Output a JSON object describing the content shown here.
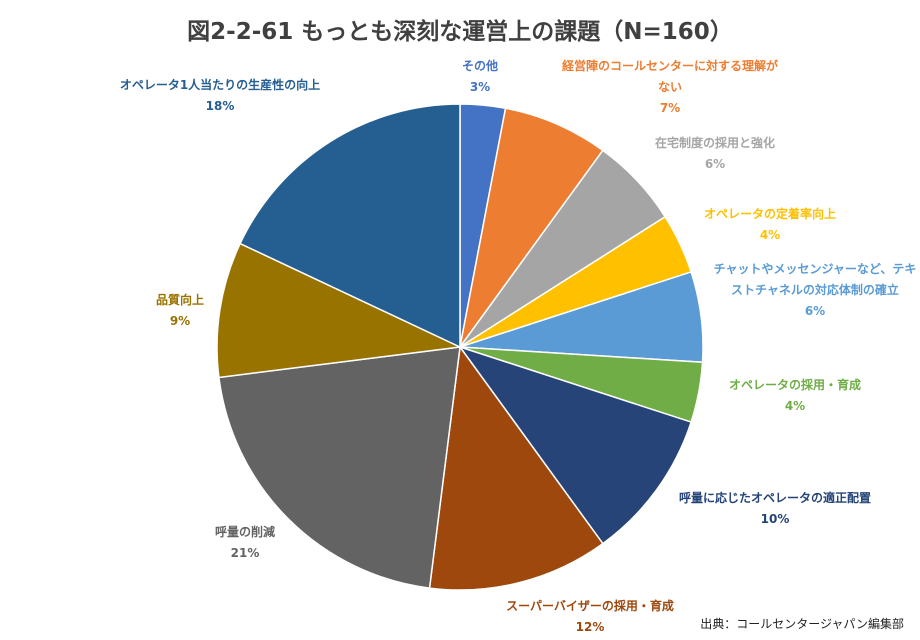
{
  "chart_data": {
    "type": "pie",
    "title": "図2-2-61 もっとも深刻な運営上の課題（N=160）",
    "slices": [
      {
        "label": "その他",
        "value": 3,
        "percent_label": "3%",
        "color": "#4472C4"
      },
      {
        "label": "経営陣のコールセンターに対する理解がない",
        "value": 7,
        "percent_label": "7%",
        "color": "#ED7D31"
      },
      {
        "label": "在宅制度の採用と強化",
        "value": 6,
        "percent_label": "6%",
        "color": "#A5A5A5"
      },
      {
        "label": "オペレータの定着率向上",
        "value": 4,
        "percent_label": "4%",
        "color": "#FFC000"
      },
      {
        "label": "チャットやメッセンジャーなど、テキストチャネルの対応体制の確立",
        "value": 6,
        "percent_label": "6%",
        "color": "#5B9BD5"
      },
      {
        "label": "オペレータの採用・育成",
        "value": 4,
        "percent_label": "4%",
        "color": "#70AD47"
      },
      {
        "label": "呼量に応じたオペレータの適正配置",
        "value": 10,
        "percent_label": "10%",
        "color": "#264478"
      },
      {
        "label": "スーパーバイザーの採用・育成",
        "value": 12,
        "percent_label": "12%",
        "color": "#9E480E"
      },
      {
        "label": "呼量の削減",
        "value": 21,
        "percent_label": "21%",
        "color": "#636363"
      },
      {
        "label": "品質向上",
        "value": 9,
        "percent_label": "9%",
        "color": "#997300"
      },
      {
        "label": "オペレータ1人当たりの生産性の向上",
        "value": 18,
        "percent_label": "18%",
        "color": "#255E91"
      }
    ]
  },
  "source_note": "出典：コールセンタージャパン編集部"
}
